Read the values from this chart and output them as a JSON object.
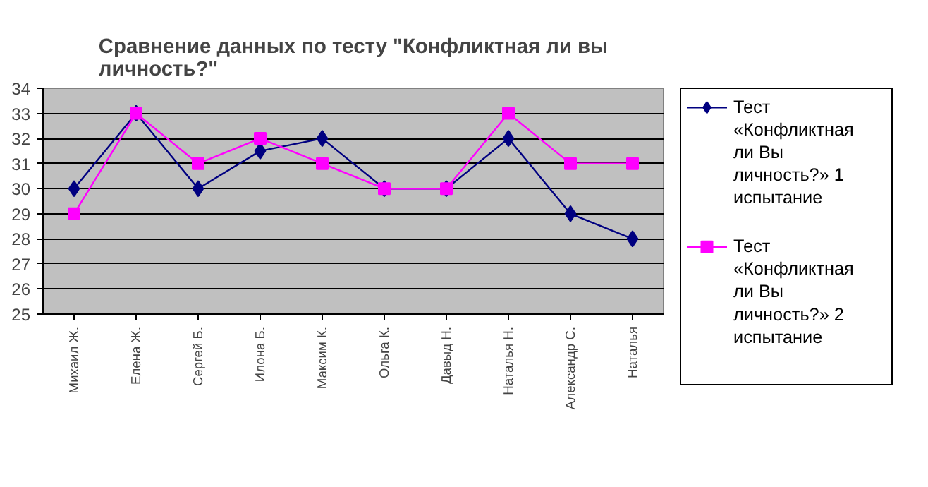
{
  "chart_data": {
    "type": "line",
    "title": "Сравнение данных по тесту \"Конфликтная ли вы личность?\"",
    "categories": [
      "Михаил Ж.",
      "Елена Ж.",
      "Сергей Б.",
      "Илона Б.",
      "Максим К.",
      "Ольга К.",
      "Давыд Н.",
      "Наталья Н.",
      "Александр С.",
      "Наталья"
    ],
    "series": [
      {
        "name": "Тест «Конфликтная ли Вы личность?» 1 испытание",
        "color": "#000080",
        "marker": "diamond",
        "values": [
          30,
          33,
          30,
          31.5,
          32,
          30,
          30,
          32,
          29,
          28
        ]
      },
      {
        "name": "Тест «Конфликтная ли Вы личность?» 2 испытание",
        "color": "#ff00ff",
        "marker": "square",
        "values": [
          29,
          33,
          31,
          32,
          31,
          30,
          30,
          33,
          31,
          31
        ]
      }
    ],
    "ylim": [
      25,
      34
    ],
    "yticks": [
      25,
      26,
      27,
      28,
      29,
      30,
      31,
      32,
      33,
      34
    ],
    "grid": "y",
    "legend": "right",
    "line_style": "solid"
  }
}
